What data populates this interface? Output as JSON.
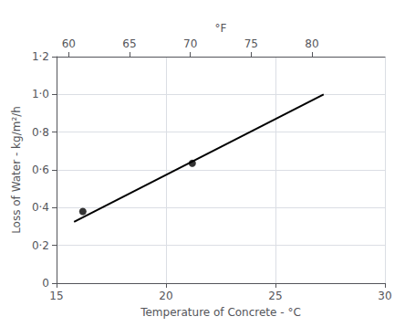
{
  "chart_data": {
    "type": "line",
    "xlabel": "Temperature of Concrete - °C",
    "x2label": "°F",
    "ylabel": "Loss of Water - kg/m²/h",
    "series": [
      {
        "type": "line",
        "x": [
          15.8,
          27.2
        ],
        "values": [
          0.325,
          1.0
        ],
        "color": "#000000"
      },
      {
        "type": "scatter",
        "x": [
          16.2,
          21.2
        ],
        "values": [
          0.38,
          0.635
        ],
        "color": "#000000"
      }
    ],
    "xlim": [
      15,
      30
    ],
    "xticks": [
      15,
      20,
      25,
      30
    ],
    "x2lim": [
      59,
      86
    ],
    "x2ticks": [
      60,
      65,
      70,
      75,
      80
    ],
    "ylim": [
      0,
      1.2
    ],
    "yticks": [
      0,
      {
        "value": 0.2,
        "label": "0·2"
      },
      {
        "value": 0.4,
        "label": "0·4"
      },
      {
        "value": 0.6,
        "label": "0·6"
      },
      {
        "value": 0.8,
        "label": "0·8"
      },
      {
        "value": 1.0,
        "label": "1·0"
      },
      {
        "value": 1.2,
        "label": "1·2"
      }
    ],
    "grid": true
  }
}
